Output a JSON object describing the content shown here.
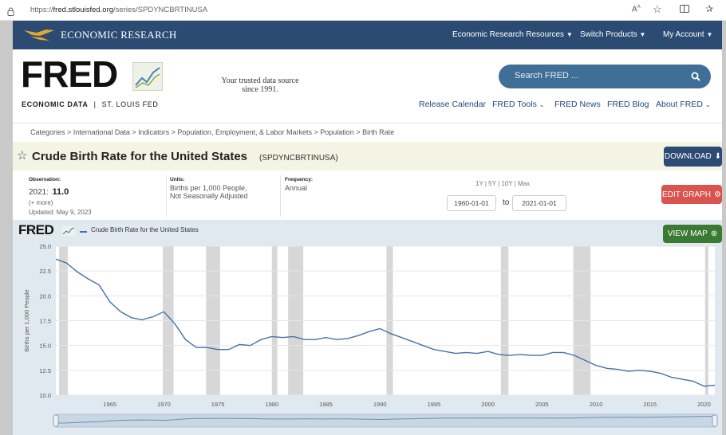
{
  "browser": {
    "url_prefix": "https://",
    "url_host": "fred.stlouisfed.org",
    "url_path": "/series/SPDYNCBRTINUSA"
  },
  "topnav": {
    "brand": "ECONOMIC RESEARCH",
    "items": [
      "Economic Research Resources",
      "Switch Products",
      "My Account"
    ]
  },
  "header": {
    "logo_text": "FRED",
    "logo_sub_left": "ECONOMIC DATA",
    "logo_sub_sep": "|",
    "logo_sub_right": "ST. LOUIS FED",
    "tagline_line1": "Your trusted data source",
    "tagline_line2": "since 1991.",
    "search_placeholder": "Search FRED ...",
    "nav": [
      "Release Calendar",
      "FRED Tools",
      "FRED News",
      "FRED Blog",
      "About FRED"
    ]
  },
  "breadcrumb": [
    "Categories",
    "International Data",
    "Indicators",
    "Population, Employment, & Labor Markets",
    "Population",
    "Birth Rate"
  ],
  "series": {
    "title": "Crude Birth Rate for the United States",
    "code": "(SPDYNCBRTINUSA)",
    "download_label": "DOWNLOAD"
  },
  "meta": {
    "observation_label": "Observation:",
    "observation_date": "2021:",
    "observation_value": "11.0",
    "more_label": "(+ more)",
    "updated": "Updated: May 9, 2023",
    "units_label": "Units:",
    "units_line1": "Births per 1,000 People,",
    "units_line2": "Not Seasonally Adjusted",
    "frequency_label": "Frequency:",
    "frequency_value": "Annual",
    "range_links": "1Y | 5Y | 10Y | Max",
    "start_date": "1960-01-01",
    "to_label": "to",
    "end_date": "2021-01-01",
    "edit_graph_label": "EDIT GRAPH"
  },
  "chart_header": {
    "logo_text": "FRED",
    "legend_label": "Crude Birth Rate for the United States",
    "view_map_label": "VIEW MAP"
  },
  "colors": {
    "navy": "#2b4b73",
    "line": "#4572a7",
    "recession": "#d7d7d7",
    "download": "#2b4b73",
    "edit": "#d9534f",
    "viewmap": "#3b7a33"
  },
  "chart_data": {
    "type": "line",
    "title": "",
    "xlabel": "",
    "ylabel": "Births per 1,000 People",
    "ylim": [
      10.0,
      25.0
    ],
    "y_ticks": [
      "10.0",
      "12.5",
      "15.0",
      "17.5",
      "20.0",
      "22.5",
      "25.0"
    ],
    "y_tick_values": [
      10.0,
      12.5,
      15.0,
      17.5,
      20.0,
      22.5,
      25.0
    ],
    "x_ticks": [
      "1965",
      "1970",
      "1975",
      "1980",
      "1985",
      "1990",
      "1995",
      "2000",
      "2005",
      "2010",
      "2015",
      "2020"
    ],
    "x_tick_values": [
      1965,
      1970,
      1975,
      1980,
      1985,
      1990,
      1995,
      2000,
      2005,
      2010,
      2015,
      2020
    ],
    "xlim": [
      1960,
      2021
    ],
    "recessions": [
      [
        1960.3,
        1961.1
      ],
      [
        1969.9,
        1970.9
      ],
      [
        1973.9,
        1975.2
      ],
      [
        1980.0,
        1980.5
      ],
      [
        1981.5,
        1982.9
      ],
      [
        1990.6,
        1991.2
      ],
      [
        2001.2,
        2001.9
      ],
      [
        2007.9,
        2009.5
      ],
      [
        2020.1,
        2020.4
      ]
    ],
    "series": [
      {
        "name": "Crude Birth Rate for the United States",
        "x": [
          1960,
          1961,
          1962,
          1963,
          1964,
          1965,
          1966,
          1967,
          1968,
          1969,
          1970,
          1971,
          1972,
          1973,
          1974,
          1975,
          1976,
          1977,
          1978,
          1979,
          1980,
          1981,
          1982,
          1983,
          1984,
          1985,
          1986,
          1987,
          1988,
          1989,
          1990,
          1991,
          1992,
          1993,
          1994,
          1995,
          1996,
          1997,
          1998,
          1999,
          2000,
          2001,
          2002,
          2003,
          2004,
          2005,
          2006,
          2007,
          2008,
          2009,
          2010,
          2011,
          2012,
          2013,
          2014,
          2015,
          2016,
          2017,
          2018,
          2019,
          2020,
          2021
        ],
        "values": [
          23.7,
          23.3,
          22.4,
          21.7,
          21.1,
          19.4,
          18.4,
          17.8,
          17.6,
          17.9,
          18.4,
          17.2,
          15.6,
          14.8,
          14.8,
          14.6,
          14.6,
          15.1,
          15.0,
          15.6,
          15.9,
          15.8,
          15.9,
          15.6,
          15.6,
          15.8,
          15.6,
          15.7,
          16.0,
          16.4,
          16.7,
          16.2,
          15.8,
          15.4,
          15.0,
          14.6,
          14.4,
          14.2,
          14.3,
          14.2,
          14.4,
          14.1,
          14.0,
          14.1,
          14.0,
          14.0,
          14.3,
          14.3,
          14.0,
          13.5,
          13.0,
          12.7,
          12.6,
          12.4,
          12.5,
          12.4,
          12.2,
          11.8,
          11.6,
          11.4,
          10.9,
          11.0
        ]
      }
    ]
  }
}
